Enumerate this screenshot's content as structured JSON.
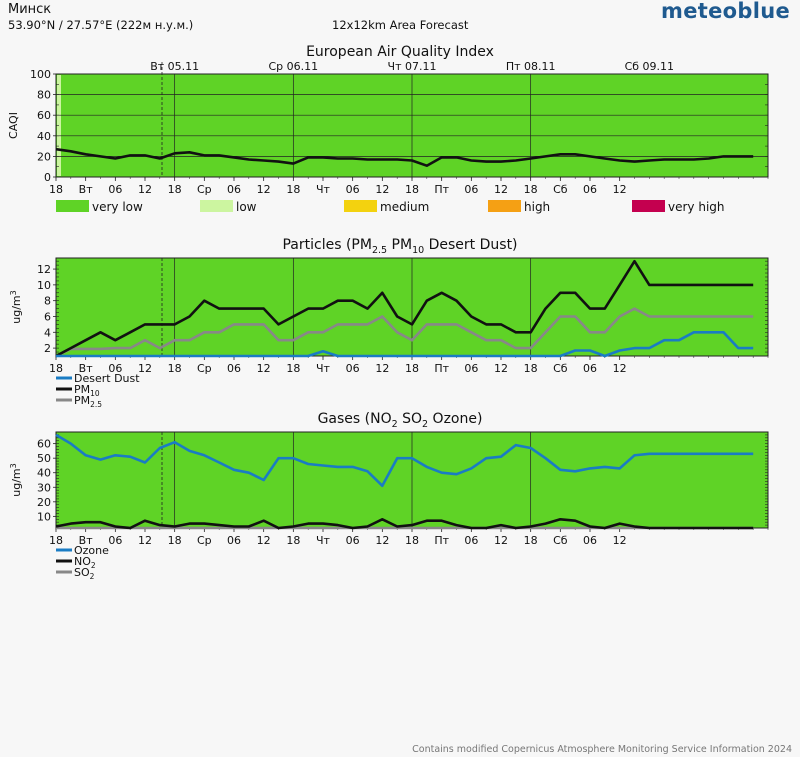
{
  "header": {
    "city": "Минск",
    "coords": "53.90°N / 27.57°E (222м н.у.м.)",
    "area": "12x12km Area Forecast",
    "brand": "meteoblue",
    "credit": "Contains modified Copernicus Atmosphere Monitoring Service Information 2024"
  },
  "colors": {
    "plot_bg": "#5fd326",
    "very_low": "#5fd326",
    "low": "#ccf5a0",
    "medium": "#f3d20f",
    "high": "#f5a014",
    "very_high": "#c4004f",
    "black": "#111111",
    "gray": "#888888",
    "blue": "#1a7cc4"
  },
  "time_axis": {
    "ticks": [
      "18",
      "Вт",
      "06",
      "12",
      "18",
      "Ср",
      "06",
      "12",
      "18",
      "Чт",
      "06",
      "12",
      "18",
      "Пт",
      "06",
      "12",
      "18",
      "Сб",
      "06",
      "12"
    ],
    "days": [
      "Вт 05.11",
      "Ср 06.11",
      "Чт 07.11",
      "Пт 08.11",
      "Сб 09.11"
    ]
  },
  "chart_data": [
    {
      "type": "line",
      "title": "European Air Quality Index",
      "ylabel": "CAQI",
      "ylim": [
        0,
        100
      ],
      "yticks": [
        "0",
        "20",
        "40",
        "60",
        "80",
        "100"
      ],
      "grid": true,
      "x_hours": [
        0,
        3,
        6,
        9,
        12,
        15,
        18,
        21,
        24,
        27,
        30,
        33,
        36,
        39,
        42,
        45,
        48,
        51,
        54,
        57,
        60,
        63,
        66,
        69,
        72,
        75,
        78,
        81,
        84,
        87,
        90,
        93,
        96,
        99,
        102,
        105,
        108,
        111,
        114,
        117,
        120,
        123,
        126,
        129,
        132,
        135,
        138,
        141
      ],
      "series": [
        {
          "values": [
            27,
            25,
            22,
            20,
            18,
            21,
            21,
            18,
            23,
            24,
            21,
            21,
            19,
            17,
            16,
            15,
            13,
            19,
            19,
            18,
            18,
            17,
            17,
            17,
            16,
            11,
            19,
            19,
            16,
            15,
            15,
            16,
            18,
            20,
            22,
            22,
            20,
            18,
            16,
            15,
            16,
            17,
            17,
            17,
            18,
            20,
            20,
            20
          ]
        }
      ],
      "legend": [
        "very low",
        "low",
        "medium",
        "high",
        "very high"
      ]
    },
    {
      "type": "line",
      "title": "Particles (PM₂.₅ PM₁₀ Desert Dust)",
      "title_parts": [
        "Particles (PM",
        "2.5",
        " PM",
        "10",
        " Desert Dust)"
      ],
      "ylabel": "ug/m³",
      "ylabel_parts": [
        "ug/m",
        "3"
      ],
      "ylim": [
        1,
        13.4
      ],
      "yticks": [
        "2",
        "4",
        "6",
        "8",
        "10",
        "12"
      ],
      "x_hours": [
        0,
        3,
        6,
        9,
        12,
        15,
        18,
        21,
        24,
        27,
        30,
        33,
        36,
        39,
        42,
        45,
        48,
        51,
        54,
        57,
        60,
        63,
        66,
        69,
        72,
        75,
        78,
        81,
        84,
        87,
        90,
        93,
        96,
        99,
        102,
        105,
        108,
        111,
        114,
        117,
        120,
        123,
        126,
        129,
        132,
        135,
        138,
        141
      ],
      "series": [
        {
          "name": "Desert Dust",
          "label_parts": [
            "Desert Dust"
          ],
          "color": "#1a7cc4",
          "values": [
            1,
            1,
            1,
            1,
            1,
            1,
            1,
            1,
            1,
            1,
            1,
            1,
            1,
            1,
            1,
            1,
            1,
            1,
            1.6,
            1,
            1,
            1,
            1,
            1,
            1,
            1,
            1,
            1,
            1,
            1,
            1,
            1,
            1,
            1,
            1,
            1.7,
            1.7,
            1,
            1.7,
            2,
            2,
            3,
            3,
            4,
            4,
            4,
            2,
            2
          ]
        },
        {
          "name": "PM10",
          "label_parts": [
            "PM",
            "10"
          ],
          "color": "#111111",
          "values": [
            1,
            2,
            3,
            4,
            3,
            4,
            5,
            5,
            5,
            6,
            8,
            7,
            7,
            7,
            7,
            5,
            6,
            7,
            7,
            8,
            8,
            7,
            9,
            6,
            5,
            8,
            9,
            8,
            6,
            5,
            5,
            4,
            4,
            7,
            9,
            9,
            7,
            7,
            10,
            13,
            10,
            10,
            10,
            10,
            10,
            10,
            10,
            10
          ]
        },
        {
          "name": "PM2.5",
          "label_parts": [
            "PM",
            "2.5"
          ],
          "color": "#888888",
          "values": [
            1,
            1.9,
            1.9,
            1.9,
            2,
            2,
            3,
            2,
            3,
            3,
            4,
            4,
            5,
            5,
            5,
            3,
            3,
            4,
            4,
            5,
            5,
            5,
            6,
            4,
            3,
            5,
            5,
            5,
            4,
            3,
            3,
            2,
            2,
            4,
            6,
            6,
            4,
            4,
            6,
            7,
            6,
            6,
            6,
            6,
            6,
            6,
            6,
            6
          ]
        }
      ]
    },
    {
      "type": "line",
      "title": "Gases (NO₂ SO₂ Ozone)",
      "title_parts": [
        "Gases (NO",
        "2",
        " SO",
        "2",
        " Ozone)"
      ],
      "ylabel": "ug/m³",
      "ylabel_parts": [
        "ug/m",
        "3"
      ],
      "ylim": [
        2,
        68
      ],
      "yticks": [
        "10",
        "20",
        "30",
        "40",
        "50",
        "60"
      ],
      "x_hours": [
        0,
        3,
        6,
        9,
        12,
        15,
        18,
        21,
        24,
        27,
        30,
        33,
        36,
        39,
        42,
        45,
        48,
        51,
        54,
        57,
        60,
        63,
        66,
        69,
        72,
        75,
        78,
        81,
        84,
        87,
        90,
        93,
        96,
        99,
        102,
        105,
        108,
        111,
        114,
        117,
        120,
        123,
        126,
        129,
        132,
        135,
        138,
        141
      ],
      "series": [
        {
          "name": "Ozone",
          "label_parts": [
            "Ozone"
          ],
          "color": "#1a7cc4",
          "values": [
            66,
            60,
            52,
            49,
            52,
            51,
            47,
            57,
            61,
            55,
            52,
            47,
            42,
            40,
            35,
            50,
            50,
            46,
            45,
            44,
            44,
            41,
            31,
            50,
            50,
            44,
            40,
            39,
            43,
            50,
            51,
            59,
            57,
            50,
            42,
            41,
            43,
            44,
            43,
            52,
            53,
            53,
            53,
            53,
            53,
            53,
            53,
            53
          ]
        },
        {
          "name": "NO2",
          "label_parts": [
            "NO",
            "2"
          ],
          "color": "#111111",
          "values": [
            3,
            5,
            6,
            6,
            3,
            2,
            7,
            4,
            3,
            5,
            5,
            4,
            3,
            3,
            7,
            2,
            3,
            5,
            5,
            4,
            2,
            3,
            8,
            3,
            4,
            7,
            7,
            4,
            2,
            2,
            4,
            2,
            3,
            5,
            8,
            7,
            3,
            2,
            5,
            3,
            2,
            2,
            2,
            2,
            2,
            2,
            2,
            2
          ]
        },
        {
          "name": "SO2",
          "label_parts": [
            "SO",
            "2"
          ],
          "color": "#888888",
          "values": [
            2,
            2,
            2,
            2,
            2,
            2,
            2,
            2,
            2,
            2,
            2,
            2,
            2,
            2,
            2,
            2,
            2,
            2,
            2,
            2,
            2,
            2,
            2,
            2,
            2,
            2,
            2,
            2,
            2,
            2,
            2,
            2,
            2,
            2,
            2,
            2,
            2,
            2,
            2,
            2,
            2,
            2,
            2,
            2,
            2,
            2,
            2,
            2
          ]
        }
      ]
    }
  ]
}
